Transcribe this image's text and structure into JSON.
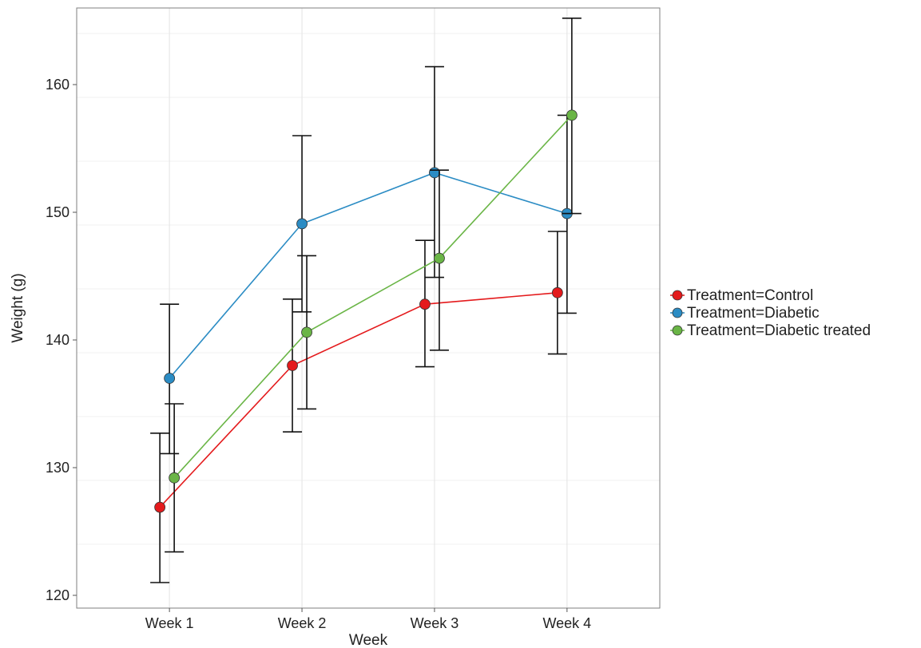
{
  "chart_data": {
    "type": "line",
    "title": "",
    "xlabel": "Week",
    "ylabel": "Weight (g)",
    "categories": [
      "Week 1",
      "Week 2",
      "Week 3",
      "Week 4"
    ],
    "ylim": [
      119,
      166
    ],
    "yticks": [
      120,
      130,
      140,
      150,
      160
    ],
    "grid": true,
    "legend_position": "right",
    "error_bars": true,
    "series": [
      {
        "name": "Treatment=Control",
        "color": "#e41a1c",
        "values": [
          126.9,
          138.0,
          142.8,
          143.7
        ],
        "err_low": [
          121.0,
          132.8,
          137.9,
          138.9
        ],
        "err_high": [
          132.7,
          143.2,
          147.8,
          148.5
        ]
      },
      {
        "name": "Treatment=Diabetic",
        "color": "#2b8cc4",
        "values": [
          137.0,
          149.1,
          153.1,
          149.9
        ],
        "err_low": [
          131.1,
          142.2,
          144.9,
          142.1
        ],
        "err_high": [
          142.8,
          156.0,
          161.4,
          157.6
        ]
      },
      {
        "name": "Treatment=Diabetic treated",
        "color": "#6ab546",
        "values": [
          129.2,
          140.6,
          146.4,
          157.6
        ],
        "err_low": [
          123.4,
          134.6,
          139.2,
          149.9
        ],
        "err_high": [
          135.0,
          146.6,
          153.3,
          165.2
        ]
      }
    ]
  }
}
